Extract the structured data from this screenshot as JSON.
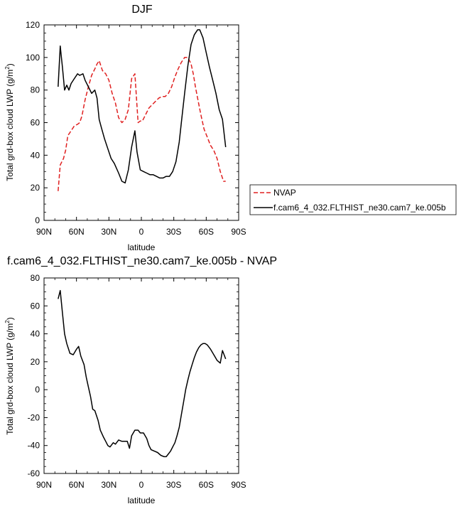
{
  "chart_data": [
    {
      "type": "line",
      "title": "DJF",
      "xlabel": "latitude",
      "ylabel": "Total grd-box cloud LWP (g/m",
      "ylabel_sup": "2",
      "ylabel_tail": ")",
      "xlim": [
        90,
        -90
      ],
      "ylim": [
        0,
        120
      ],
      "x_ticks": [
        90,
        60,
        30,
        0,
        -30,
        -60,
        -90
      ],
      "x_tick_labels": [
        "90N",
        "60N",
        "30N",
        "0",
        "30S",
        "60S",
        "90S"
      ],
      "y_ticks": [
        0,
        20,
        40,
        60,
        80,
        100,
        120
      ],
      "y_tick_labels": [
        "0",
        "20",
        "40",
        "60",
        "80",
        "100",
        "120"
      ],
      "legend_position": "right",
      "series": [
        {
          "name": "NVAP",
          "color": "#e02020",
          "dash": "dashed",
          "x": [
            77,
            75,
            72,
            70,
            68,
            65,
            62,
            59,
            57,
            55,
            52,
            49,
            46,
            43,
            41,
            39,
            36,
            33,
            30,
            27,
            24,
            21,
            18,
            15,
            12,
            9,
            6,
            4,
            3,
            1,
            -1,
            -4,
            -7,
            -10,
            -13,
            -16,
            -19,
            -22,
            -25,
            -28,
            -31,
            -34,
            -37,
            -40,
            -43,
            -46,
            -48,
            -50,
            -52,
            -55,
            -58,
            -61,
            -64,
            -67,
            -70,
            -73,
            -76,
            -78
          ],
          "y": [
            18,
            34,
            38,
            43,
            52,
            55,
            58,
            59,
            60,
            64,
            74,
            82,
            89,
            93,
            96,
            98,
            92,
            90,
            86,
            78,
            72,
            63,
            60,
            62,
            68,
            87,
            90,
            70,
            60,
            61,
            61,
            65,
            69,
            71,
            73,
            75,
            76,
            76,
            78,
            82,
            88,
            93,
            97,
            100,
            100,
            96,
            90,
            82,
            75,
            65,
            56,
            51,
            46,
            43,
            38,
            30,
            24,
            24
          ]
        },
        {
          "name": "f.cam6_4_032.FLTHIST_ne30.cam7_ke.005b",
          "color": "#000000",
          "dash": "solid",
          "x": [
            77,
            75,
            73,
            71,
            69,
            67,
            65,
            62,
            59,
            57,
            54,
            52,
            49,
            46,
            43,
            41,
            39,
            37,
            34,
            31,
            28,
            25,
            21,
            18,
            15,
            12,
            9,
            6,
            4,
            1,
            -2,
            -5,
            -8,
            -11,
            -14,
            -17,
            -20,
            -23,
            -26,
            -29,
            -32,
            -35,
            -37,
            -40,
            -43,
            -46,
            -49,
            -52,
            -54,
            -57,
            -60,
            -63,
            -66,
            -69,
            -72,
            -75,
            -78
          ],
          "y": [
            82,
            107,
            94,
            80,
            83,
            80,
            84,
            87,
            90,
            89,
            90,
            86,
            82,
            78,
            80,
            75,
            62,
            57,
            50,
            44,
            38,
            35,
            29,
            24,
            23,
            31,
            45,
            55,
            42,
            31,
            30,
            29,
            28,
            28,
            27,
            26,
            26,
            27,
            27,
            30,
            36,
            48,
            60,
            78,
            95,
            108,
            114,
            117,
            117,
            112,
            103,
            94,
            86,
            78,
            68,
            62,
            45
          ]
        }
      ]
    },
    {
      "type": "line",
      "title": "f.cam6_4_032.FLTHIST_ne30.cam7_ke.005b - NVAP",
      "xlabel": "latitude",
      "ylabel": "Total grd-box cloud LWP (g/m",
      "ylabel_sup": "2",
      "ylabel_tail": ")",
      "xlim": [
        90,
        -90
      ],
      "ylim": [
        -60,
        80
      ],
      "x_ticks": [
        90,
        60,
        30,
        0,
        -30,
        -60,
        -90
      ],
      "x_tick_labels": [
        "90N",
        "60N",
        "30N",
        "0",
        "30S",
        "60S",
        "90S"
      ],
      "y_ticks": [
        -60,
        -40,
        -20,
        0,
        20,
        40,
        60,
        80
      ],
      "y_tick_labels": [
        "-60",
        "-40",
        "-20",
        "0",
        "20",
        "40",
        "60",
        "80"
      ],
      "series": [
        {
          "color": "#000000",
          "dash": "solid",
          "x": [
            77,
            75,
            73,
            71,
            69,
            66,
            63,
            60,
            58,
            56,
            53,
            51,
            49,
            47,
            45,
            43,
            40,
            38,
            35,
            33,
            31,
            29,
            26,
            24,
            21,
            18,
            16,
            13,
            11,
            9,
            6,
            3,
            1,
            -2,
            -5,
            -7,
            -9,
            -12,
            -15,
            -18,
            -21,
            -23,
            -25,
            -27,
            -29,
            -31,
            -33,
            -35,
            -37,
            -39,
            -41,
            -43,
            -45,
            -47,
            -49,
            -51,
            -53,
            -55,
            -57,
            -59,
            -61,
            -64,
            -67,
            -70,
            -73,
            -75,
            -78
          ],
          "y": [
            65,
            71,
            55,
            40,
            33,
            26,
            25,
            29,
            31,
            24,
            18,
            9,
            2,
            -5,
            -14,
            -15,
            -22,
            -29,
            -34,
            -37,
            -40,
            -41,
            -38,
            -39,
            -36,
            -37,
            -37,
            -37,
            -42,
            -33,
            -29,
            -29,
            -31,
            -31,
            -35,
            -40,
            -43,
            -44,
            -45,
            -47,
            -48,
            -48,
            -46,
            -44,
            -41,
            -38,
            -33,
            -27,
            -18,
            -9,
            0,
            7,
            13,
            18,
            23,
            27,
            30,
            32,
            33,
            33,
            32,
            29,
            25,
            21,
            19,
            28,
            22
          ]
        }
      ]
    }
  ]
}
